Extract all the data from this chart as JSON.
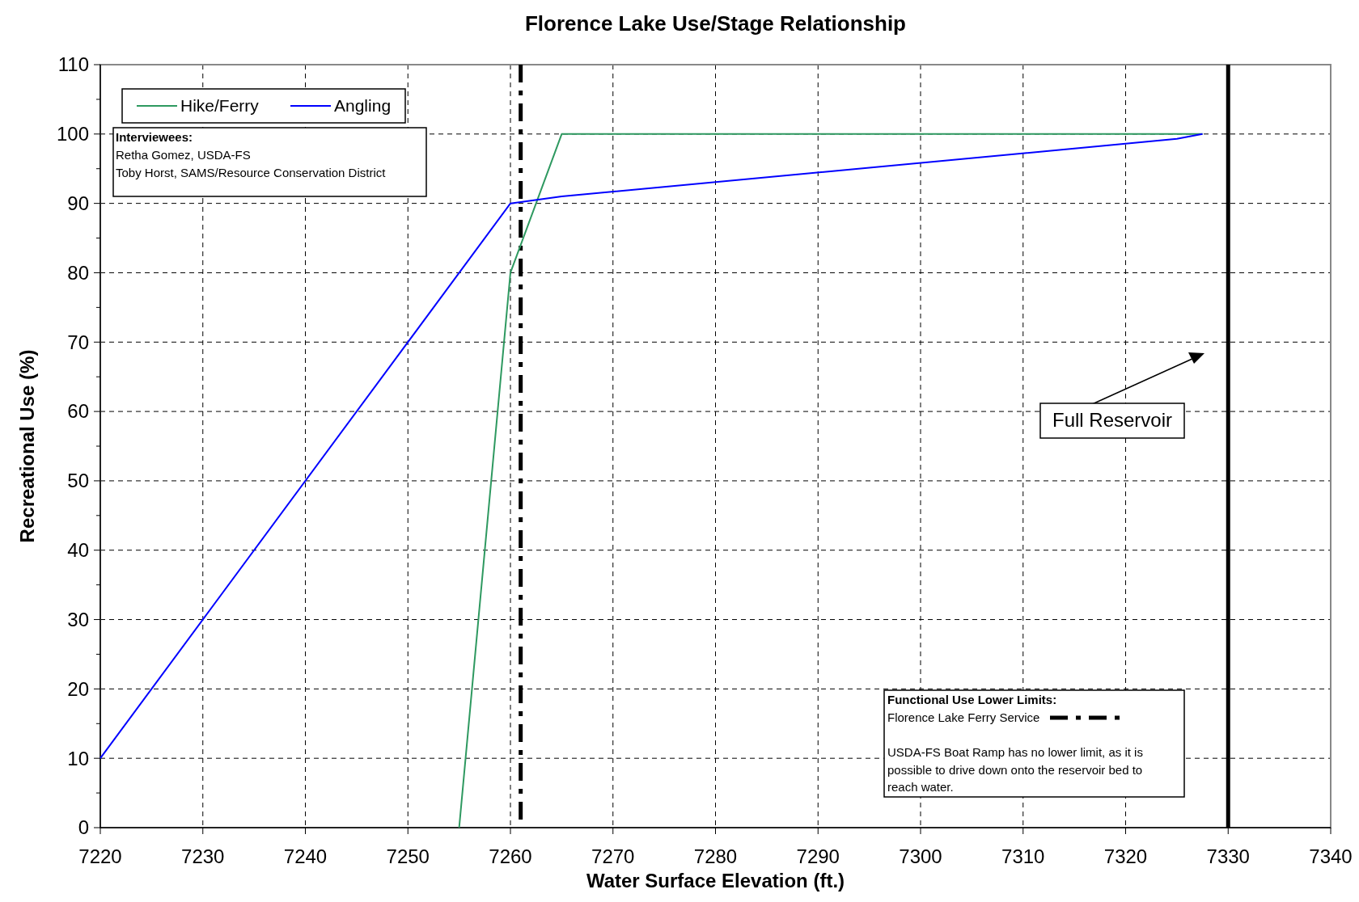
{
  "chart_data": {
    "type": "line",
    "title": "Florence Lake Use/Stage Relationship",
    "xlabel": "Water Surface Elevation (ft.)",
    "ylabel": "Recreational Use (%)",
    "xlim": [
      7220,
      7340
    ],
    "xticks": [
      7220,
      7230,
      7240,
      7250,
      7260,
      7270,
      7280,
      7290,
      7300,
      7310,
      7320,
      7330,
      7340
    ],
    "ylim": [
      0,
      110
    ],
    "yticks": [
      0,
      {
        "value": 5,
        "label": null
      },
      10,
      {
        "value": 15,
        "label": null
      },
      20,
      {
        "value": 25,
        "label": null
      },
      30,
      {
        "value": 35,
        "label": null
      },
      40,
      {
        "value": 45,
        "label": null
      },
      50,
      {
        "value": 55,
        "label": null
      },
      60,
      {
        "value": 65,
        "label": null
      },
      70,
      {
        "value": 75,
        "label": null
      },
      80,
      {
        "value": 85,
        "label": null
      },
      90,
      {
        "value": 95,
        "label": null
      },
      100,
      {
        "value": 105,
        "label": null
      },
      110
    ],
    "grid": true,
    "legend": "top left",
    "marker": "none",
    "series": [
      {
        "name": "Hike/Ferry",
        "color": "#2e9960",
        "x": [
          7255,
          7260,
          7265,
          7327.5
        ],
        "values": [
          0,
          80,
          100,
          100
        ]
      },
      {
        "name": "Angling",
        "color": "#0000ff",
        "x": [
          7220,
          7260,
          7265,
          7325,
          7327.5
        ],
        "values": [
          10,
          90,
          91,
          99.3,
          100
        ]
      }
    ],
    "ref_lines": [
      {
        "axis": "x",
        "value": 7261,
        "color": "#000000",
        "line_style": "dashed"
      },
      {
        "axis": "x",
        "value": 7330,
        "label": "Full Reservoir",
        "color": "#000000",
        "line_style": "solid"
      }
    ],
    "annotations": [
      "Interviewees:\nRetha Gomez, USDA-FS\nToby Horst, SAMS/Resource Conservation District",
      "Functional Use Lower Limits:",
      "Florence Lake Ferry Service",
      "USDA-FS Boat Ramp has no lower limit, as it is\npossible to drive down onto the reservoir bed to\nreach water."
    ]
  }
}
